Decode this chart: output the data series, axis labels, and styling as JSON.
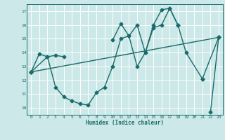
{
  "title": "",
  "xlabel": "Humidex (Indice chaleur)",
  "bg_color": "#cce8e8",
  "line_color": "#1a6b6b",
  "grid_color": "#ffffff",
  "xlim": [
    -0.5,
    23.5
  ],
  "ylim": [
    9.5,
    17.5
  ],
  "xticks": [
    0,
    1,
    2,
    3,
    4,
    5,
    6,
    7,
    8,
    9,
    10,
    11,
    12,
    13,
    14,
    15,
    16,
    17,
    18,
    19,
    20,
    21,
    22,
    23
  ],
  "yticks": [
    10,
    11,
    12,
    13,
    14,
    15,
    16,
    17
  ],
  "line1_x": [
    0,
    1,
    2,
    3,
    4,
    10,
    11,
    12,
    13,
    14,
    15,
    16,
    17,
    18,
    21,
    23
  ],
  "line1_y": [
    12.6,
    13.9,
    13.7,
    13.8,
    13.7,
    14.9,
    16.1,
    15.2,
    16.0,
    14.0,
    16.0,
    17.1,
    17.2,
    16.0,
    12.1,
    15.1
  ],
  "line2_x": [
    0,
    2,
    3,
    4,
    5,
    6,
    7,
    8,
    9,
    10,
    11,
    12,
    13,
    14,
    15,
    16,
    17,
    18,
    19,
    21,
    22,
    23
  ],
  "line2_y": [
    12.6,
    13.7,
    11.5,
    10.8,
    10.5,
    10.3,
    10.2,
    11.1,
    11.5,
    13.0,
    15.0,
    15.2,
    13.0,
    14.0,
    15.8,
    16.0,
    17.2,
    16.0,
    14.0,
    12.1,
    9.7,
    15.1
  ],
  "line3_x": [
    0,
    23
  ],
  "line3_y": [
    12.6,
    15.1
  ],
  "marker_size": 2.5,
  "linewidth": 1.0
}
